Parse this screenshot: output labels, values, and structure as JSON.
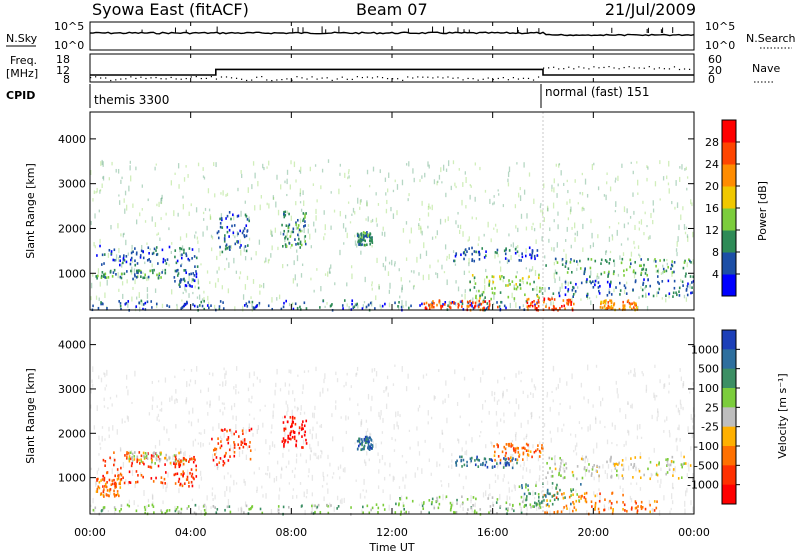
{
  "header": {
    "station": "Syowa East (fitACF)",
    "beam": "Beam 07",
    "date": "21/Jul/2009"
  },
  "noise_panel": {
    "left_label": "N.Sky",
    "right_label": "N.Search",
    "tick_top": "10^5",
    "tick_bottom": "10^0"
  },
  "freq_panel": {
    "left_label_line1": "Freq.",
    "left_label_line2": "[MHz]",
    "left_ticks": [
      "18",
      "12",
      "8"
    ],
    "right_label": "Nave",
    "right_ticks": [
      "60",
      "20",
      "0"
    ]
  },
  "cpid": {
    "label": "CPID",
    "segments": [
      {
        "name": "themis 3300",
        "start_hour": 0,
        "end_hour": 18
      },
      {
        "name": "normal (fast) 151",
        "start_hour": 18,
        "end_hour": 24
      }
    ]
  },
  "x_axis": {
    "label": "Time UT",
    "ticks": [
      "00:00",
      "04:00",
      "08:00",
      "12:00",
      "16:00",
      "20:00",
      "00:00"
    ]
  },
  "power_panel": {
    "ylabel": "Slant Range [km]",
    "yticks": [
      "1000",
      "2000",
      "3000",
      "4000"
    ],
    "colorbar_label": "Power [dB]",
    "colorbar_ticks": [
      "4",
      "8",
      "12",
      "16",
      "20",
      "24",
      "28"
    ],
    "colors": [
      "#0000ff",
      "#1c4fa6",
      "#2e8b57",
      "#7ccd3c",
      "#f0c800",
      "#ff8c00",
      "#ff4500",
      "#ff0000"
    ]
  },
  "velocity_panel": {
    "ylabel": "Slant Range [km]",
    "yticks": [
      "1000",
      "2000",
      "3000",
      "4000"
    ],
    "colorbar_label": "Velocity [m s⁻¹]",
    "colorbar_ticks": [
      "1000",
      "500",
      "100",
      "25",
      "-25",
      "-100",
      "-500",
      "-1000"
    ],
    "colors": [
      "#1c3fb8",
      "#2e6f9e",
      "#3c8f64",
      "#7ccd3c",
      "#bebebe",
      "#ffb000",
      "#ff7000",
      "#ff3000",
      "#ff0000"
    ]
  },
  "chart_data": [
    {
      "type": "line",
      "panel": "noise",
      "series": [
        {
          "name": "N.Sky"
        },
        {
          "name": "N.Search"
        }
      ],
      "xlabel": "",
      "ylim_log10": [
        0,
        5
      ]
    },
    {
      "type": "line",
      "panel": "frequency",
      "xlabel": "",
      "ylabel": "Freq. [MHz]",
      "ylim": [
        8,
        18
      ],
      "series": [
        {
          "name": "Freq.",
          "x_hours": [
            0,
            5,
            5,
            18,
            18,
            24
          ],
          "values": [
            10.5,
            10.5,
            12.5,
            12.5,
            10.5,
            10.5
          ]
        },
        {
          "name": "Nave",
          "right_axis_lim": [
            0,
            60
          ]
        }
      ]
    },
    {
      "type": "heatmap",
      "panel": "power",
      "xlim_hours": [
        0,
        24
      ],
      "ylim_km": [
        180,
        4600
      ],
      "zlabel": "Power [dB]",
      "zlim": [
        0,
        30
      ],
      "regions": [
        {
          "t0": 0.0,
          "t1": 18.0,
          "r0": 200,
          "r1": 420,
          "level": 1
        },
        {
          "t0": 13.2,
          "t1": 16.2,
          "r0": 200,
          "r1": 420,
          "level": 6
        },
        {
          "t0": 17.3,
          "t1": 19.2,
          "r0": 200,
          "r1": 460,
          "level": 6
        },
        {
          "t0": 20.2,
          "t1": 21.8,
          "r0": 200,
          "r1": 420,
          "level": 5
        },
        {
          "t0": 0.1,
          "t1": 3.2,
          "r0": 1200,
          "r1": 1650,
          "level": 1
        },
        {
          "t0": 0.1,
          "t1": 3.0,
          "r0": 900,
          "r1": 1100,
          "level": 2
        },
        {
          "t0": 3.3,
          "t1": 4.3,
          "r0": 700,
          "r1": 1600,
          "level": 1
        },
        {
          "t0": 5.0,
          "t1": 6.3,
          "r0": 1500,
          "r1": 2400,
          "level": 1
        },
        {
          "t0": 7.6,
          "t1": 8.6,
          "r0": 1600,
          "r1": 2400,
          "level": 2
        },
        {
          "t0": 10.6,
          "t1": 11.2,
          "r0": 1650,
          "r1": 1950,
          "level": 2
        },
        {
          "t0": 14.2,
          "t1": 17.8,
          "r0": 1300,
          "r1": 1600,
          "level": 1
        },
        {
          "t0": 18.0,
          "t1": 24.0,
          "r0": 950,
          "r1": 1350,
          "level": 2
        },
        {
          "t0": 15.0,
          "t1": 18.0,
          "r0": 450,
          "r1": 1000,
          "level": 3
        },
        {
          "t0": 18.0,
          "t1": 24.0,
          "r0": 500,
          "r1": 900,
          "level": 1
        }
      ]
    },
    {
      "type": "heatmap",
      "panel": "velocity",
      "xlim_hours": [
        0,
        24
      ],
      "ylim_km": [
        180,
        4600
      ],
      "zlabel": "Velocity [m s⁻¹]",
      "zlim": [
        -1000,
        1000
      ],
      "regions": [
        {
          "t0": 0.0,
          "t1": 12.0,
          "r0": 200,
          "r1": 420,
          "level": 3
        },
        {
          "t0": 12.0,
          "t1": 18.0,
          "r0": 200,
          "r1": 600,
          "level": 3
        },
        {
          "t0": 0.2,
          "t1": 1.2,
          "r0": 600,
          "r1": 1000,
          "level": 6
        },
        {
          "t0": 0.4,
          "t1": 3.0,
          "r0": 900,
          "r1": 1600,
          "level": 7
        },
        {
          "t0": 1.5,
          "t1": 3.8,
          "r0": 1350,
          "r1": 1600,
          "level": 4
        },
        {
          "t0": 3.3,
          "t1": 4.2,
          "r0": 800,
          "r1": 1500,
          "level": 7
        },
        {
          "t0": 4.8,
          "t1": 6.4,
          "r0": 1300,
          "r1": 2200,
          "level": 7
        },
        {
          "t0": 7.6,
          "t1": 8.6,
          "r0": 1700,
          "r1": 2400,
          "level": 8
        },
        {
          "t0": 10.6,
          "t1": 11.2,
          "r0": 1650,
          "r1": 1950,
          "level": 1
        },
        {
          "t0": 14.5,
          "t1": 17.0,
          "r0": 1250,
          "r1": 1500,
          "level": 1
        },
        {
          "t0": 16.0,
          "t1": 18.0,
          "r0": 1400,
          "r1": 1800,
          "level": 6
        },
        {
          "t0": 18.0,
          "t1": 24.0,
          "r0": 1000,
          "r1": 1500,
          "level": 4
        },
        {
          "t0": 18.0,
          "t1": 22.5,
          "r0": 200,
          "r1": 700,
          "level": 6
        },
        {
          "t0": 17.0,
          "t1": 19.5,
          "r0": 400,
          "r1": 900,
          "level": 2
        }
      ]
    }
  ]
}
